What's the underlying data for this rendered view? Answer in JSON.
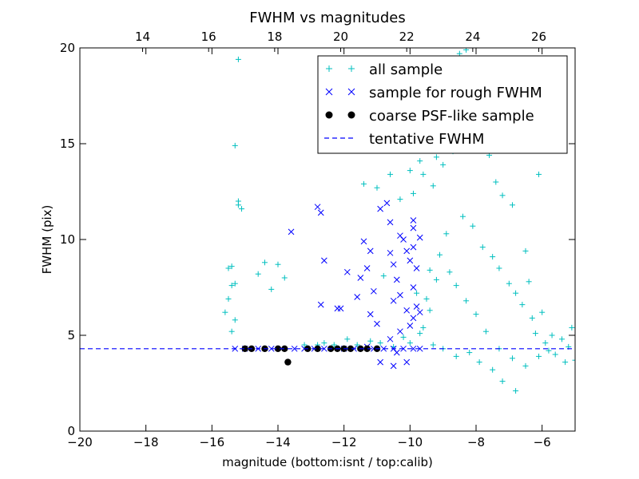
{
  "chart_data": {
    "type": "scatter",
    "title": "FWHM vs magnitudes",
    "xlabel": "magnitude (bottom:isnt / top:calib)",
    "ylabel": "FWHM (pix)",
    "xlim": [
      -20,
      -5
    ],
    "ylim": [
      0,
      20
    ],
    "x_ticks": [
      -20,
      -18,
      -16,
      -14,
      -12,
      -10,
      -8,
      -6
    ],
    "x_tick_labels": [
      "−20",
      "−18",
      "−16",
      "−14",
      "−12",
      "−10",
      "−8",
      "−6"
    ],
    "y_ticks": [
      0,
      5,
      10,
      15,
      20
    ],
    "y_tick_labels": [
      "0",
      "5",
      "10",
      "15",
      "20"
    ],
    "top_axis": {
      "offset": 32.1,
      "ticks": [
        14,
        16,
        18,
        20,
        22,
        24,
        26
      ],
      "tick_labels": [
        "14",
        "16",
        "18",
        "20",
        "22",
        "24",
        "26"
      ]
    },
    "legend_position": "top-right",
    "legend": [
      "all sample",
      "sample for rough FWHM",
      "coarse PSF-like sample",
      "tentative FWHM"
    ],
    "grid": false,
    "colors": {
      "all_sample": "#00bfbf",
      "rough": "#0000ff",
      "psf": "#000000",
      "tentative": "#0000ff"
    },
    "series": [
      {
        "name": "all sample",
        "marker": "+",
        "points": [
          [
            -15.2,
            19.4
          ],
          [
            -15.3,
            14.9
          ],
          [
            -15.2,
            12.0
          ],
          [
            -15.2,
            11.8
          ],
          [
            -15.1,
            11.6
          ],
          [
            -15.5,
            8.5
          ],
          [
            -15.4,
            8.6
          ],
          [
            -15.4,
            7.6
          ],
          [
            -15.3,
            7.7
          ],
          [
            -15.5,
            6.9
          ],
          [
            -15.6,
            6.2
          ],
          [
            -15.3,
            5.8
          ],
          [
            -15.4,
            5.2
          ],
          [
            -14.6,
            8.2
          ],
          [
            -14.4,
            8.8
          ],
          [
            -14.0,
            8.7
          ],
          [
            -14.2,
            7.4
          ],
          [
            -13.8,
            8.0
          ],
          [
            -12.8,
            4.5
          ],
          [
            -12.3,
            4.5
          ],
          [
            -11.9,
            4.8
          ],
          [
            -11.4,
            12.9
          ],
          [
            -11.0,
            12.7
          ],
          [
            -10.8,
            8.1
          ],
          [
            -10.6,
            13.4
          ],
          [
            -10.3,
            12.1
          ],
          [
            -10.0,
            13.6
          ],
          [
            -9.9,
            12.4
          ],
          [
            -9.6,
            13.4
          ],
          [
            -9.7,
            14.1
          ],
          [
            -9.3,
            12.8
          ],
          [
            -9.2,
            14.3
          ],
          [
            -9.0,
            13.9
          ],
          [
            -8.7,
            14.6
          ],
          [
            -8.5,
            19.7
          ],
          [
            -8.3,
            19.9
          ],
          [
            -8.2,
            18.1
          ],
          [
            -8.0,
            17.6
          ],
          [
            -7.6,
            14.4
          ],
          [
            -7.4,
            13.0
          ],
          [
            -7.2,
            12.3
          ],
          [
            -6.9,
            11.8
          ],
          [
            -6.5,
            9.4
          ],
          [
            -6.1,
            13.4
          ],
          [
            -6.4,
            7.8
          ],
          [
            -6.0,
            6.2
          ],
          [
            -5.7,
            5.0
          ],
          [
            -5.4,
            4.8
          ],
          [
            -5.2,
            4.4
          ],
          [
            -5.0,
            3.7
          ],
          [
            -5.3,
            3.6
          ],
          [
            -5.1,
            5.4
          ],
          [
            -6.8,
            2.1
          ],
          [
            -7.2,
            2.6
          ],
          [
            -7.5,
            3.2
          ],
          [
            -7.9,
            3.6
          ],
          [
            -8.2,
            4.1
          ],
          [
            -8.6,
            3.9
          ],
          [
            -9.0,
            4.3
          ],
          [
            -9.3,
            4.5
          ],
          [
            -9.6,
            5.4
          ],
          [
            -9.5,
            6.9
          ],
          [
            -9.8,
            7.2
          ],
          [
            -9.4,
            8.4
          ],
          [
            -9.1,
            9.2
          ],
          [
            -8.9,
            10.3
          ],
          [
            -8.4,
            11.2
          ],
          [
            -8.1,
            10.7
          ],
          [
            -7.8,
            9.6
          ],
          [
            -7.5,
            9.1
          ],
          [
            -7.3,
            8.5
          ],
          [
            -7.0,
            7.7
          ],
          [
            -6.8,
            7.2
          ],
          [
            -6.6,
            6.6
          ],
          [
            -6.3,
            5.9
          ],
          [
            -6.2,
            5.1
          ],
          [
            -5.9,
            4.6
          ],
          [
            -5.6,
            4.0
          ],
          [
            -5.8,
            4.2
          ],
          [
            -6.1,
            3.9
          ],
          [
            -6.5,
            3.4
          ],
          [
            -6.9,
            3.8
          ],
          [
            -7.3,
            4.3
          ],
          [
            -7.7,
            5.2
          ],
          [
            -8.0,
            6.1
          ],
          [
            -8.3,
            6.8
          ],
          [
            -8.6,
            7.6
          ],
          [
            -8.8,
            8.3
          ],
          [
            -9.2,
            7.9
          ],
          [
            -9.4,
            6.3
          ],
          [
            -9.7,
            5.1
          ],
          [
            -10.0,
            4.6
          ],
          [
            -10.2,
            4.9
          ],
          [
            -10.5,
            4.4
          ],
          [
            -10.9,
            4.6
          ],
          [
            -11.2,
            4.7
          ],
          [
            -11.6,
            4.5
          ],
          [
            -12.6,
            4.6
          ],
          [
            -13.2,
            4.5
          ],
          [
            -15.0,
            4.3
          ]
        ]
      },
      {
        "name": "sample for rough FWHM",
        "marker": "x",
        "points": [
          [
            -15.3,
            4.3
          ],
          [
            -15.0,
            4.3
          ],
          [
            -14.6,
            4.3
          ],
          [
            -14.2,
            4.3
          ],
          [
            -13.9,
            4.3
          ],
          [
            -13.5,
            4.3
          ],
          [
            -13.2,
            4.3
          ],
          [
            -12.9,
            4.3
          ],
          [
            -12.6,
            4.3
          ],
          [
            -12.3,
            4.3
          ],
          [
            -12.0,
            4.3
          ],
          [
            -11.7,
            4.3
          ],
          [
            -11.4,
            4.3
          ],
          [
            -11.1,
            4.3
          ],
          [
            -10.8,
            4.3
          ],
          [
            -10.5,
            4.3
          ],
          [
            -10.2,
            4.3
          ],
          [
            -9.9,
            4.3
          ],
          [
            -9.7,
            4.3
          ],
          [
            -12.8,
            11.7
          ],
          [
            -12.7,
            11.4
          ],
          [
            -13.6,
            10.4
          ],
          [
            -12.6,
            8.9
          ],
          [
            -12.7,
            6.6
          ],
          [
            -12.2,
            6.4
          ],
          [
            -12.1,
            6.4
          ],
          [
            -11.9,
            8.3
          ],
          [
            -11.5,
            8.0
          ],
          [
            -11.6,
            7.0
          ],
          [
            -11.4,
            9.9
          ],
          [
            -11.2,
            9.4
          ],
          [
            -11.3,
            8.5
          ],
          [
            -11.1,
            7.3
          ],
          [
            -11.2,
            6.1
          ],
          [
            -11.0,
            5.6
          ],
          [
            -10.9,
            11.6
          ],
          [
            -10.7,
            11.9
          ],
          [
            -10.6,
            10.9
          ],
          [
            -10.6,
            9.3
          ],
          [
            -10.5,
            8.7
          ],
          [
            -10.3,
            10.2
          ],
          [
            -10.2,
            10.0
          ],
          [
            -10.1,
            9.4
          ],
          [
            -10.0,
            8.9
          ],
          [
            -10.4,
            7.9
          ],
          [
            -10.3,
            7.1
          ],
          [
            -10.5,
            6.8
          ],
          [
            -10.1,
            6.3
          ],
          [
            -9.9,
            11.0
          ],
          [
            -9.9,
            10.6
          ],
          [
            -9.9,
            9.6
          ],
          [
            -9.7,
            10.1
          ],
          [
            -9.8,
            8.5
          ],
          [
            -9.9,
            7.5
          ],
          [
            -9.8,
            6.5
          ],
          [
            -9.7,
            6.2
          ],
          [
            -9.9,
            5.9
          ],
          [
            -10.0,
            5.5
          ],
          [
            -10.3,
            5.2
          ],
          [
            -10.6,
            4.8
          ],
          [
            -11.3,
            4.4
          ],
          [
            -10.9,
            3.6
          ],
          [
            -10.5,
            3.4
          ],
          [
            -10.1,
            3.6
          ],
          [
            -10.4,
            4.1
          ]
        ]
      },
      {
        "name": "coarse PSF-like sample",
        "marker": "o",
        "points": [
          [
            -15.0,
            4.3
          ],
          [
            -14.8,
            4.3
          ],
          [
            -14.4,
            4.3
          ],
          [
            -14.0,
            4.3
          ],
          [
            -13.8,
            4.3
          ],
          [
            -13.7,
            3.6
          ],
          [
            -13.1,
            4.3
          ],
          [
            -12.8,
            4.3
          ],
          [
            -12.4,
            4.3
          ],
          [
            -12.2,
            4.3
          ],
          [
            -12.0,
            4.3
          ],
          [
            -11.8,
            4.3
          ],
          [
            -11.5,
            4.3
          ],
          [
            -11.3,
            4.3
          ],
          [
            -11.0,
            4.3
          ]
        ]
      },
      {
        "name": "tentative FWHM",
        "marker": "dashed-line",
        "value": 4.3
      }
    ]
  }
}
